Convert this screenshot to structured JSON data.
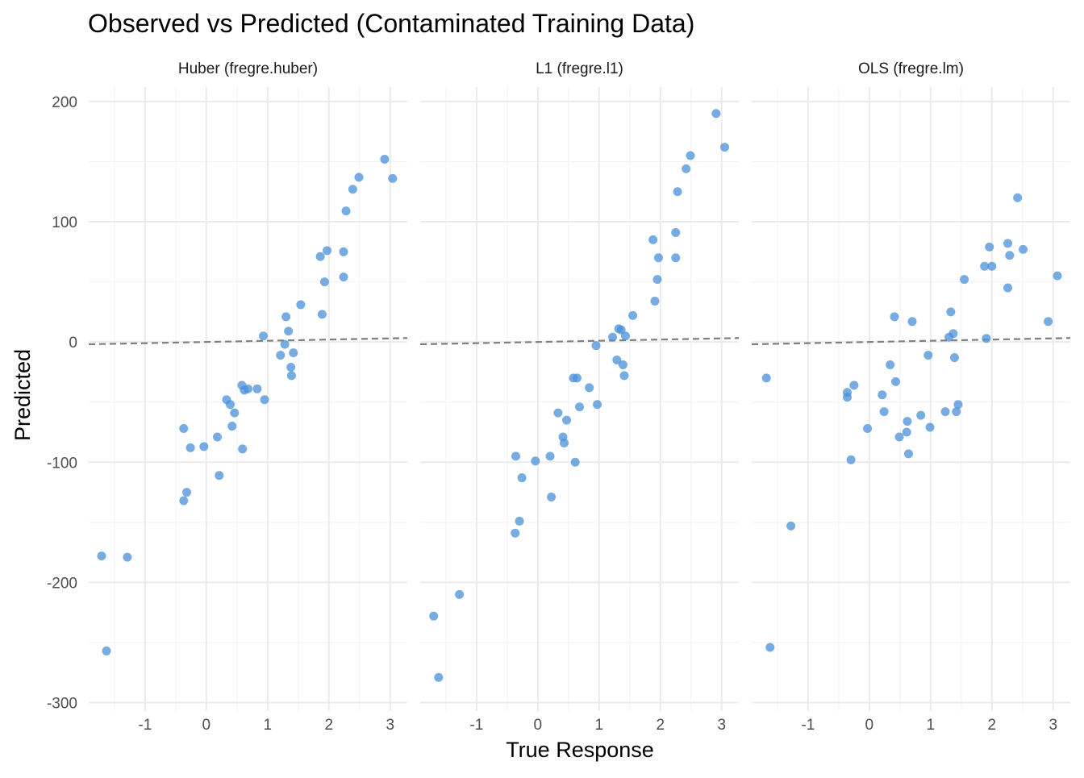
{
  "chart_data": {
    "type": "scatter",
    "title": "Observed vs Predicted (Contaminated Training Data)",
    "xlabel": "True Response",
    "ylabel": "Predicted",
    "xlim": [
      -1.92,
      3.28
    ],
    "ylim": [
      -307,
      212
    ],
    "xticks": [
      -1,
      0,
      1,
      2,
      3
    ],
    "yticks": [
      -300,
      -200,
      -100,
      0,
      100,
      200
    ],
    "grid": true,
    "reference_line": {
      "type": "identity",
      "style": "dashed",
      "color": "#7f7f7f"
    },
    "point_color": "#4a90d9",
    "panels": [
      {
        "name": "Huber (fregre.huber)",
        "x": [
          -1.71,
          -1.63,
          -1.29,
          -0.37,
          -0.37,
          -0.32,
          -0.26,
          -0.04,
          0.18,
          0.21,
          0.33,
          0.39,
          0.42,
          0.46,
          0.58,
          0.59,
          0.62,
          0.68,
          0.83,
          0.93,
          0.95,
          1.21,
          1.28,
          1.3,
          1.34,
          1.38,
          1.39,
          1.42,
          1.54,
          1.86,
          1.89,
          1.93,
          1.97,
          2.24,
          2.24,
          2.28,
          2.39,
          2.49,
          2.91,
          3.04
        ],
        "y": [
          -178,
          -257,
          -179,
          -72,
          -132,
          -125,
          -88,
          -87,
          -79,
          -111,
          -48,
          -52,
          -70,
          -59,
          -36,
          -89,
          -40,
          -39,
          -39,
          5,
          -48,
          -11,
          -2,
          21,
          9,
          -21,
          -28,
          -9,
          31,
          71,
          23,
          50,
          76,
          75,
          54,
          109,
          127,
          137,
          152,
          136
        ]
      },
      {
        "name": "L1 (fregre.l1)",
        "x": [
          -1.7,
          -1.62,
          -1.28,
          -0.36,
          -0.37,
          -0.3,
          -0.26,
          -0.04,
          0.2,
          0.22,
          0.33,
          0.41,
          0.43,
          0.47,
          0.58,
          0.61,
          0.64,
          0.68,
          0.84,
          0.95,
          0.97,
          1.22,
          1.29,
          1.32,
          1.36,
          1.39,
          1.41,
          1.43,
          1.55,
          1.88,
          1.91,
          1.95,
          1.97,
          2.25,
          2.25,
          2.28,
          2.42,
          2.49,
          2.91,
          3.05
        ],
        "y": [
          -228,
          -279,
          -210,
          -95,
          -159,
          -149,
          -113,
          -99,
          -95,
          -129,
          -59,
          -79,
          -84,
          -65,
          -30,
          -100,
          -30,
          -54,
          -38,
          -3,
          -52,
          4,
          -15,
          11,
          10,
          -19,
          -28,
          5,
          22,
          85,
          34,
          52,
          70,
          91,
          70,
          125,
          144,
          155,
          190,
          162
        ]
      },
      {
        "name": "OLS (fregre.lm)",
        "x": [
          -1.68,
          -1.62,
          -1.28,
          -0.36,
          -0.36,
          -0.3,
          -0.25,
          -0.03,
          0.21,
          0.24,
          0.34,
          0.43,
          0.41,
          0.49,
          0.61,
          0.62,
          0.64,
          0.7,
          0.84,
          0.96,
          0.99,
          1.24,
          1.3,
          1.33,
          1.37,
          1.39,
          1.42,
          1.45,
          1.55,
          1.88,
          1.91,
          1.96,
          2.0,
          2.26,
          2.26,
          2.29,
          2.42,
          2.51,
          2.92,
          3.07
        ],
        "y": [
          -30,
          -254,
          -153,
          -46,
          -42,
          -98,
          -36,
          -72,
          -44,
          -58,
          -19,
          -33,
          21,
          -79,
          -75,
          -66,
          -93,
          17,
          -61,
          -11,
          -71,
          -58,
          4,
          25,
          7,
          -13,
          -58,
          -52,
          52,
          63,
          3,
          79,
          63,
          82,
          45,
          72,
          120,
          77,
          17,
          55
        ]
      }
    ]
  }
}
